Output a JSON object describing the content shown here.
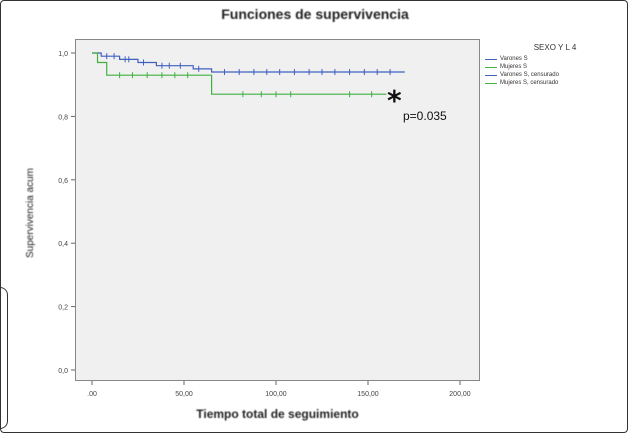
{
  "chart_data": {
    "type": "line",
    "title": "Funciones de supervivencia",
    "xlabel": "Tiempo total de seguimiento",
    "ylabel": "Supervivencia acum",
    "xlim": [
      0,
      200
    ],
    "ylim": [
      0,
      1.0
    ],
    "x_ticks": [
      ".00",
      "50,00",
      "100,00",
      "150,00",
      "200,00"
    ],
    "y_ticks": [
      "0,0",
      "0,2",
      "0,4",
      "0,6",
      "0,8",
      "1,0"
    ],
    "grid": false,
    "legend": {
      "title": "SEXO Y L 4",
      "position": "right",
      "entries": [
        {
          "label": "Varones S",
          "color": "#4060c0"
        },
        {
          "label": "Mujeres S",
          "color": "#40b040"
        },
        {
          "label": "Varones S, censurado",
          "color": "#4060c0"
        },
        {
          "label": "Mujeres S, censurado",
          "color": "#40b040"
        }
      ]
    },
    "series": [
      {
        "name": "Varones S",
        "color": "#4060c0",
        "steps": [
          [
            0,
            1.0
          ],
          [
            5,
            0.99
          ],
          [
            15,
            0.98
          ],
          [
            25,
            0.97
          ],
          [
            35,
            0.96
          ],
          [
            55,
            0.95
          ],
          [
            65,
            0.94
          ],
          [
            170,
            0.94
          ]
        ],
        "censored": [
          [
            8,
            0.99
          ],
          [
            12,
            0.99
          ],
          [
            18,
            0.98
          ],
          [
            20,
            0.98
          ],
          [
            28,
            0.97
          ],
          [
            38,
            0.96
          ],
          [
            42,
            0.96
          ],
          [
            48,
            0.96
          ],
          [
            58,
            0.95
          ],
          [
            72,
            0.94
          ],
          [
            80,
            0.94
          ],
          [
            88,
            0.94
          ],
          [
            95,
            0.94
          ],
          [
            102,
            0.94
          ],
          [
            110,
            0.94
          ],
          [
            118,
            0.94
          ],
          [
            125,
            0.94
          ],
          [
            132,
            0.94
          ],
          [
            140,
            0.94
          ],
          [
            148,
            0.94
          ],
          [
            155,
            0.94
          ],
          [
            162,
            0.94
          ]
        ]
      },
      {
        "name": "Mujeres S",
        "color": "#40b040",
        "steps": [
          [
            0,
            1.0
          ],
          [
            3,
            0.97
          ],
          [
            8,
            0.93
          ],
          [
            60,
            0.93
          ],
          [
            65,
            0.87
          ],
          [
            160,
            0.87
          ]
        ],
        "censored": [
          [
            15,
            0.93
          ],
          [
            22,
            0.93
          ],
          [
            30,
            0.93
          ],
          [
            38,
            0.93
          ],
          [
            45,
            0.93
          ],
          [
            52,
            0.93
          ],
          [
            82,
            0.87
          ],
          [
            92,
            0.87
          ],
          [
            100,
            0.87
          ],
          [
            108,
            0.87
          ],
          [
            140,
            0.87
          ],
          [
            152,
            0.87
          ]
        ]
      }
    ],
    "annotations": [
      {
        "text": "*",
        "x": 156,
        "y": 0.87
      },
      {
        "text": "p=0.035",
        "x": 156,
        "y": 0.85
      }
    ]
  }
}
